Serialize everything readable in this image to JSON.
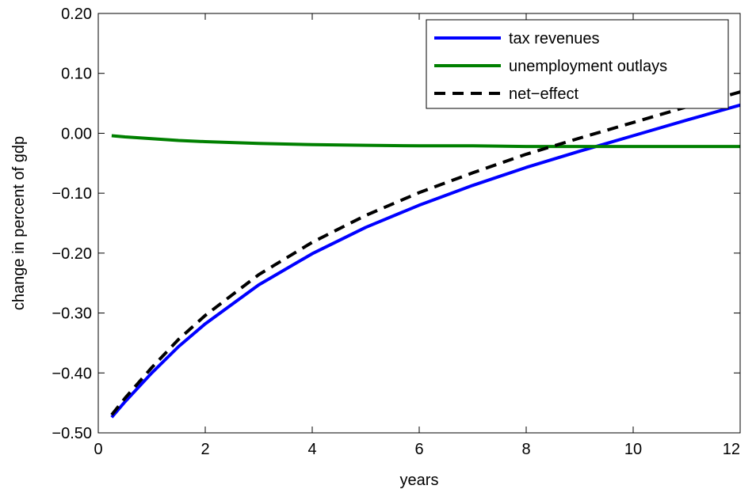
{
  "chart_data": {
    "type": "line",
    "title": "",
    "xlabel": "years",
    "ylabel": "change in percent of gdp",
    "xlim": [
      0,
      12
    ],
    "ylim": [
      -0.5,
      0.2
    ],
    "grid": false,
    "legend_position": "top-right",
    "x_ticks": [
      0,
      2,
      4,
      6,
      8,
      10,
      12
    ],
    "x_tick_labels": [
      "0",
      "2",
      "4",
      "6",
      "8",
      "10",
      "12"
    ],
    "y_ticks": [
      -0.5,
      -0.4,
      -0.3,
      -0.2,
      -0.1,
      0.0,
      0.1,
      0.2
    ],
    "y_tick_labels": [
      "−0.50",
      "−0.40",
      "−0.30",
      "−0.20",
      "−0.10",
      "0.00",
      "0.10",
      "0.20"
    ],
    "x": [
      0.25,
      0.5,
      1,
      1.5,
      2,
      3,
      4,
      5,
      6,
      7,
      8,
      9,
      10,
      11,
      12
    ],
    "series": [
      {
        "name": "tax revenues",
        "color": "#0000ff",
        "style": "solid",
        "values": [
          -0.474,
          -0.448,
          -0.4,
          -0.356,
          -0.318,
          -0.253,
          -0.201,
          -0.157,
          -0.12,
          -0.087,
          -0.057,
          -0.03,
          -0.004,
          0.022,
          0.047
        ]
      },
      {
        "name": "unemployment outlays",
        "color": "#008000",
        "style": "solid",
        "values": [
          -0.004,
          -0.006,
          -0.009,
          -0.012,
          -0.014,
          -0.017,
          -0.019,
          -0.02,
          -0.021,
          -0.021,
          -0.022,
          -0.022,
          -0.022,
          -0.022,
          -0.022
        ]
      },
      {
        "name": "net−effect",
        "color": "#000000",
        "style": "dashed",
        "values": [
          -0.47,
          -0.442,
          -0.391,
          -0.344,
          -0.304,
          -0.236,
          -0.182,
          -0.137,
          -0.099,
          -0.066,
          -0.035,
          -0.008,
          0.018,
          0.044,
          0.069
        ]
      }
    ]
  }
}
